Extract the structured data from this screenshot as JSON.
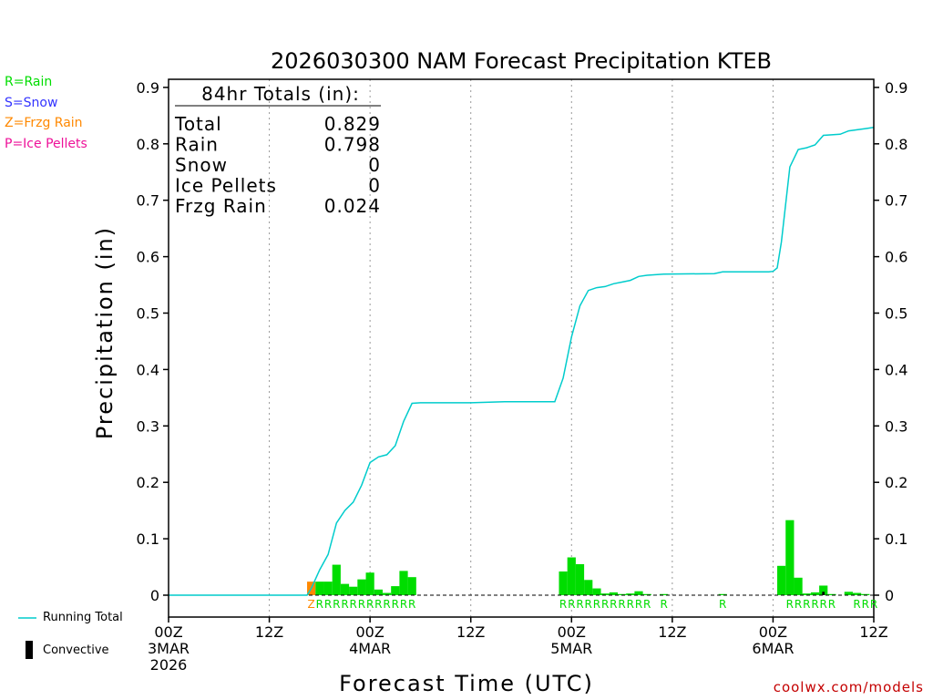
{
  "colors": {
    "rain": "#00dd00",
    "snow": "#3333ff",
    "frzg_rain": "#ff8800",
    "ice_pellets": "#ee1199",
    "running_total": "#00cccc",
    "convective": "#000000",
    "site": "#c40000"
  },
  "legend": {
    "rain": "R=Rain",
    "snow": "S=Snow",
    "frzg_rain": "Z=Frzg Rain",
    "ice_pellets": "P=Ice Pellets",
    "running_total": "Running Total",
    "convective": "Convective"
  },
  "site": "coolwx.com/models",
  "chart_data": {
    "type": "bar",
    "title": "2026030300 NAM Forecast Precipitation KTEB",
    "xlabel": "Forecast Time (UTC)",
    "ylabel": "Precipitation (in)",
    "ylim": [
      0,
      0.9
    ],
    "yticks": [
      0,
      0.1,
      0.2,
      0.3,
      0.4,
      0.5,
      0.6,
      0.7,
      0.8,
      0.9
    ],
    "ytick_labels": [
      "0",
      "0.1",
      "0.2",
      "0.3",
      "0.4",
      "0.5",
      "0.6",
      "0.7",
      "0.8",
      "0.9"
    ],
    "xlim_hours": [
      0,
      84
    ],
    "xticks": [
      {
        "hour": 0,
        "line1": "00Z",
        "line2": "3MAR",
        "line3": "2026"
      },
      {
        "hour": 12,
        "line1": "12Z",
        "line2": "",
        "line3": ""
      },
      {
        "hour": 24,
        "line1": "00Z",
        "line2": "4MAR",
        "line3": ""
      },
      {
        "hour": 36,
        "line1": "12Z",
        "line2": "",
        "line3": ""
      },
      {
        "hour": 48,
        "line1": "00Z",
        "line2": "5MAR",
        "line3": ""
      },
      {
        "hour": 60,
        "line1": "12Z",
        "line2": "",
        "line3": ""
      },
      {
        "hour": 72,
        "line1": "00Z",
        "line2": "6MAR",
        "line3": ""
      },
      {
        "hour": 84,
        "line1": "12Z",
        "line2": "",
        "line3": ""
      }
    ],
    "grid": "dotted vertical at 12-hour intervals",
    "totals_box": {
      "heading": "84hr Totals (in):",
      "rows": [
        {
          "label": "Total",
          "value": "0.829"
        },
        {
          "label": "Rain",
          "value": "0.798"
        },
        {
          "label": "Snow",
          "value": "0"
        },
        {
          "label": "Ice Pellets",
          "value": "0"
        },
        {
          "label": "Frzg Rain",
          "value": "0.024"
        }
      ]
    },
    "bars": [
      {
        "hour": 17,
        "value": 0.024,
        "type": "Z"
      },
      {
        "hour": 18,
        "value": 0.024,
        "type": "R"
      },
      {
        "hour": 19,
        "value": 0.024,
        "type": "R"
      },
      {
        "hour": 20,
        "value": 0.054,
        "type": "R"
      },
      {
        "hour": 21,
        "value": 0.02,
        "type": "R"
      },
      {
        "hour": 22,
        "value": 0.015,
        "type": "R"
      },
      {
        "hour": 23,
        "value": 0.028,
        "type": "R"
      },
      {
        "hour": 24,
        "value": 0.04,
        "type": "R"
      },
      {
        "hour": 25,
        "value": 0.01,
        "type": "R"
      },
      {
        "hour": 26,
        "value": 0.004,
        "type": "R"
      },
      {
        "hour": 27,
        "value": 0.016,
        "type": "R"
      },
      {
        "hour": 28,
        "value": 0.043,
        "type": "R"
      },
      {
        "hour": 29,
        "value": 0.032,
        "type": "R"
      },
      {
        "hour": 47,
        "value": 0.042,
        "type": "R"
      },
      {
        "hour": 48,
        "value": 0.067,
        "type": "R"
      },
      {
        "hour": 49,
        "value": 0.055,
        "type": "R"
      },
      {
        "hour": 50,
        "value": 0.027,
        "type": "R"
      },
      {
        "hour": 51,
        "value": 0.012,
        "type": "R"
      },
      {
        "hour": 52,
        "value": 0.003,
        "type": "R"
      },
      {
        "hour": 53,
        "value": 0.005,
        "type": "R"
      },
      {
        "hour": 54,
        "value": 0.002,
        "type": "R"
      },
      {
        "hour": 55,
        "value": 0.003,
        "type": "R"
      },
      {
        "hour": 56,
        "value": 0.007,
        "type": "R"
      },
      {
        "hour": 57,
        "value": 0.002,
        "type": "R"
      },
      {
        "hour": 59,
        "value": 0.002,
        "type": "R"
      },
      {
        "hour": 66,
        "value": 0.002,
        "type": "R"
      },
      {
        "hour": 73,
        "value": 0.052,
        "type": "R"
      },
      {
        "hour": 74,
        "value": 0.133,
        "type": "R"
      },
      {
        "hour": 75,
        "value": 0.031,
        "type": "R"
      },
      {
        "hour": 76,
        "value": 0.003,
        "type": "R"
      },
      {
        "hour": 77,
        "value": 0.005,
        "type": "R"
      },
      {
        "hour": 78,
        "value": 0.017,
        "type": "R",
        "convective": 0.006
      },
      {
        "hour": 79,
        "value": 0.002,
        "type": "R"
      },
      {
        "hour": 81,
        "value": 0.006,
        "type": "R"
      },
      {
        "hour": 82,
        "value": 0.004,
        "type": "R"
      },
      {
        "hour": 83,
        "value": 0.002,
        "type": "R"
      }
    ],
    "ptype_labels": [
      {
        "hour": 17,
        "label": "Z"
      },
      {
        "hour": 18,
        "label": "R"
      },
      {
        "hour": 19,
        "label": "R"
      },
      {
        "hour": 20,
        "label": "R"
      },
      {
        "hour": 21,
        "label": "R"
      },
      {
        "hour": 22,
        "label": "R"
      },
      {
        "hour": 23,
        "label": "R"
      },
      {
        "hour": 24,
        "label": "R"
      },
      {
        "hour": 25,
        "label": "R"
      },
      {
        "hour": 26,
        "label": "R"
      },
      {
        "hour": 27,
        "label": "R"
      },
      {
        "hour": 28,
        "label": "R"
      },
      {
        "hour": 29,
        "label": "R"
      },
      {
        "hour": 47,
        "label": "R"
      },
      {
        "hour": 48,
        "label": "R"
      },
      {
        "hour": 49,
        "label": "R"
      },
      {
        "hour": 50,
        "label": "R"
      },
      {
        "hour": 51,
        "label": "R"
      },
      {
        "hour": 52,
        "label": "R"
      },
      {
        "hour": 53,
        "label": "R"
      },
      {
        "hour": 54,
        "label": "R"
      },
      {
        "hour": 55,
        "label": "R"
      },
      {
        "hour": 56,
        "label": "R"
      },
      {
        "hour": 57,
        "label": "R"
      },
      {
        "hour": 59,
        "label": "R"
      },
      {
        "hour": 66,
        "label": "R"
      },
      {
        "hour": 74,
        "label": "R"
      },
      {
        "hour": 75,
        "label": "R"
      },
      {
        "hour": 76,
        "label": "R"
      },
      {
        "hour": 77,
        "label": "R"
      },
      {
        "hour": 78,
        "label": "R"
      },
      {
        "hour": 79,
        "label": "R"
      },
      {
        "hour": 82,
        "label": "R"
      },
      {
        "hour": 83,
        "label": "R"
      },
      {
        "hour": 84,
        "label": "R"
      }
    ],
    "running_total": {
      "name": "Running Total",
      "points": [
        [
          0,
          0
        ],
        [
          16.5,
          0
        ],
        [
          17,
          0.012
        ],
        [
          18,
          0.045
        ],
        [
          19,
          0.072
        ],
        [
          20,
          0.128
        ],
        [
          21,
          0.15
        ],
        [
          22,
          0.165
        ],
        [
          23,
          0.195
        ],
        [
          24,
          0.235
        ],
        [
          25,
          0.245
        ],
        [
          26,
          0.249
        ],
        [
          27,
          0.265
        ],
        [
          28,
          0.308
        ],
        [
          29,
          0.34
        ],
        [
          30,
          0.341
        ],
        [
          36,
          0.341
        ],
        [
          40,
          0.343
        ],
        [
          46,
          0.343
        ],
        [
          47,
          0.385
        ],
        [
          48,
          0.458
        ],
        [
          49,
          0.513
        ],
        [
          50,
          0.54
        ],
        [
          51,
          0.545
        ],
        [
          52,
          0.547
        ],
        [
          53,
          0.552
        ],
        [
          54,
          0.555
        ],
        [
          55,
          0.558
        ],
        [
          56,
          0.565
        ],
        [
          57,
          0.567
        ],
        [
          59,
          0.569
        ],
        [
          65,
          0.57
        ],
        [
          66,
          0.573
        ],
        [
          71.5,
          0.573
        ],
        [
          72,
          0.574
        ],
        [
          72.5,
          0.58
        ],
        [
          73,
          0.626
        ],
        [
          74,
          0.759
        ],
        [
          75,
          0.79
        ],
        [
          76,
          0.793
        ],
        [
          77,
          0.798
        ],
        [
          78,
          0.815
        ],
        [
          80,
          0.817
        ],
        [
          81,
          0.823
        ],
        [
          83,
          0.827
        ],
        [
          84,
          0.829
        ]
      ]
    }
  }
}
